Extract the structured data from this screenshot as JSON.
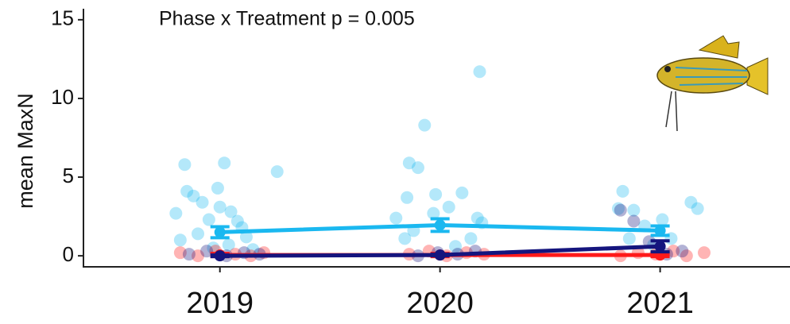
{
  "chart_data": {
    "type": "line",
    "annotation": "Phase x Treatment p = 0.005",
    "ylabel": "mean MaxN",
    "x": [
      2019,
      2020,
      2021
    ],
    "xlim": [
      2018.38,
      2021.59
    ],
    "xticks": [
      2019,
      2020,
      2021
    ],
    "ylim": [
      -0.7,
      15.7
    ],
    "yticks": [
      0,
      5,
      10,
      15
    ],
    "series": [
      {
        "color": "#1ab8f0",
        "values": [
          1.5,
          1.95,
          1.6
        ],
        "errors": [
          0.35,
          0.4,
          0.3
        ],
        "points": {
          "x": [
            2018.84,
            2019.02,
            2019.26,
            2018.85,
            2018.88,
            2018.92,
            2018.99,
            2018.8,
            2019.05,
            2018.95,
            2019.08,
            2019.1,
            2019.0,
            2018.9,
            2019.12,
            2018.82,
            2019.04,
            2018.97,
            2019.15,
            2019.93,
            2020.18,
            2019.86,
            2019.9,
            2019.85,
            2019.98,
            2020.1,
            2020.04,
            2019.8,
            2020.17,
            2019.97,
            2019.88,
            2020.14,
            2020.19,
            2019.84,
            2020.07,
            2020.83,
            2020.81,
            2020.88,
            2021.14,
            2021.17,
            2021.01,
            2020.93,
            2021.05,
            2020.86,
            2020.97
          ],
          "y": [
            5.8,
            5.9,
            5.35,
            4.1,
            3.8,
            3.4,
            4.3,
            2.7,
            2.8,
            2.3,
            2.2,
            1.8,
            3.1,
            1.4,
            1.2,
            1.0,
            0.7,
            0.5,
            0.4,
            8.3,
            11.7,
            5.9,
            5.6,
            3.7,
            3.9,
            4.0,
            3.1,
            2.4,
            2.4,
            2.7,
            1.6,
            1.1,
            2.1,
            1.1,
            0.6,
            4.1,
            3.0,
            2.9,
            3.4,
            3.0,
            2.3,
            1.9,
            1.1,
            1.1,
            0.7
          ]
        }
      },
      {
        "color": "#ff1a1a",
        "values": [
          0.05,
          0.05,
          0.05
        ],
        "errors": [
          0.1,
          0.1,
          0.1
        ],
        "points": {
          "x": [
            2018.82,
            2018.9,
            2018.98,
            2019.07,
            2019.14,
            2019.2,
            2019.86,
            2019.95,
            2020.03,
            2020.12,
            2020.2,
            2020.82,
            2020.9,
            2020.98,
            2021.06,
            2021.12,
            2021.2
          ],
          "y": [
            0.2,
            0.0,
            0.3,
            0.1,
            0.0,
            0.2,
            0.1,
            0.3,
            0.0,
            0.2,
            0.1,
            0.0,
            0.2,
            0.1,
            0.3,
            0.0,
            0.2
          ]
        }
      },
      {
        "color": "#15157e",
        "values": [
          0.0,
          0.05,
          0.6
        ],
        "errors": [
          0.05,
          0.05,
          0.35
        ],
        "points": {
          "x": [
            2018.86,
            2018.94,
            2019.03,
            2019.11,
            2019.18,
            2019.9,
            2019.99,
            2020.08,
            2020.16,
            2020.82,
            2020.88,
            2020.95,
            2021.03,
            2021.1
          ],
          "y": [
            0.1,
            0.3,
            0.0,
            0.2,
            0.1,
            0.0,
            0.2,
            0.1,
            0.3,
            2.9,
            2.2,
            0.9,
            0.1,
            0.3
          ]
        }
      }
    ]
  }
}
